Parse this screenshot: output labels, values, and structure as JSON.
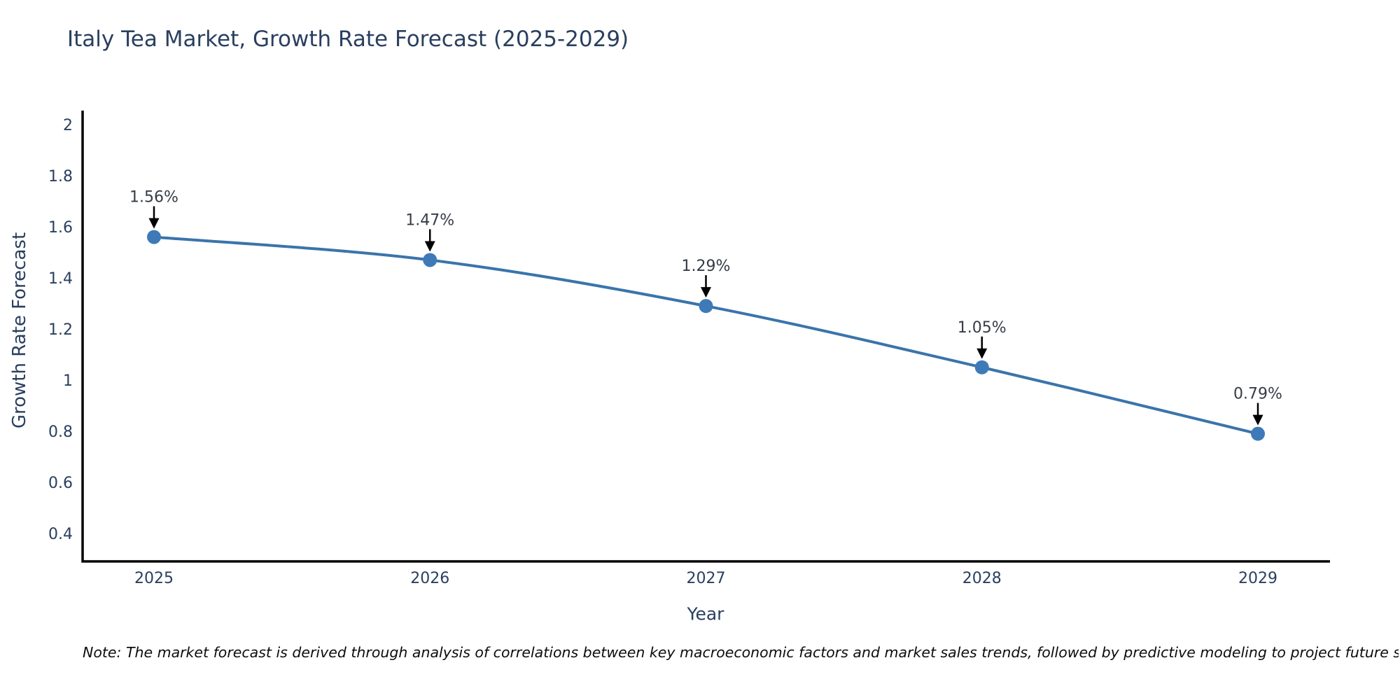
{
  "chart": {
    "title": "Italy Tea Market, Growth Rate Forecast (2025-2029)",
    "note": "Note: The market forecast is derived through analysis of correlations between key macroeconomic factors and market sales trends, followed by predictive modeling to project future sales"
  },
  "chart_data": {
    "type": "line",
    "title": "Italy Tea Market, Growth Rate Forecast (2025-2029)",
    "xlabel": "Year",
    "ylabel": "Growth Rate Forecast",
    "x_labels": [
      "2025",
      "2026",
      "2027",
      "2028",
      "2029"
    ],
    "values": [
      1.56,
      1.47,
      1.29,
      1.05,
      0.79
    ],
    "point_labels": [
      "1.56%",
      "1.47%",
      "1.29%",
      "1.05%",
      "0.79%"
    ],
    "ytick_labels": [
      "0.4",
      "0.6",
      "0.8",
      "1",
      "1.2",
      "1.4",
      "1.6",
      "1.8",
      "2"
    ],
    "yticks": [
      0.4,
      0.6,
      0.8,
      1,
      1.2,
      1.4,
      1.6,
      1.8,
      2
    ],
    "ylim": [
      0.29,
      2.07
    ],
    "grid": false,
    "legend": false,
    "colors": {
      "line": "#3a74ab",
      "marker": "#3f7ab8",
      "axis": "#000000",
      "tick_text": "#2a3f5f",
      "annotation_text": "#363c46",
      "arrow": "#000000",
      "background": "#ffffff"
    }
  }
}
